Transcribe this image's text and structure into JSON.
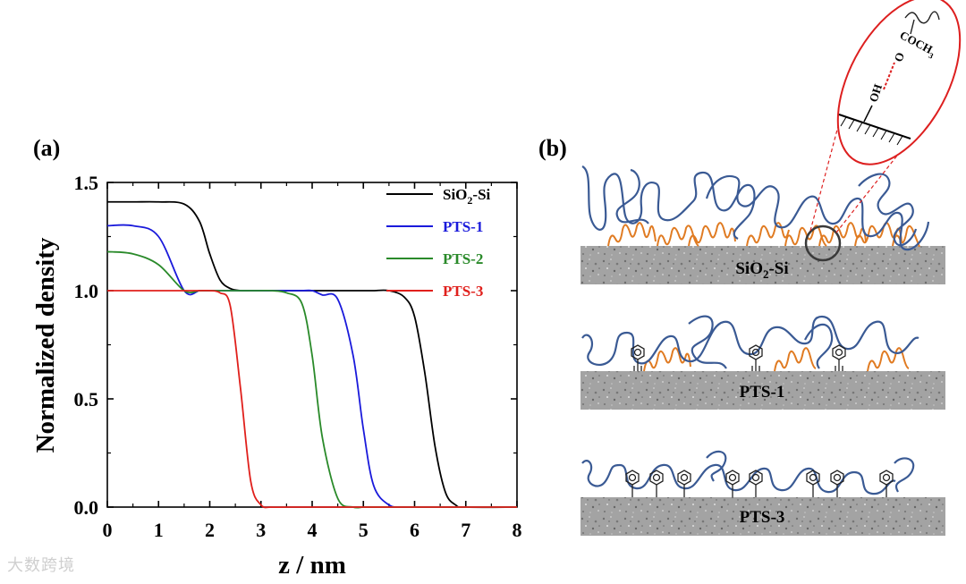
{
  "panel_a": {
    "label": "(a)"
  },
  "panel_b": {
    "label": "(b)",
    "substrates": [
      {
        "label_main": "SiO",
        "label_sub": "2",
        "label_tail": "-Si"
      },
      {
        "label_main": "PTS-1",
        "label_sub": "",
        "label_tail": ""
      },
      {
        "label_main": "PTS-3",
        "label_sub": "",
        "label_tail": ""
      }
    ],
    "zoom": {
      "hydroxyl": "OH",
      "carbonyl": "O",
      "acetyl_main": "COCH",
      "acetyl_sub": "3"
    }
  },
  "watermark": {
    "text": "大数跨境"
  },
  "colors": {
    "sio2": "#000000",
    "pts1": "#1a1adb",
    "pts2": "#2a8a2a",
    "pts3": "#e0201c",
    "polymer": "#3a5a94",
    "sam": "#e07b22",
    "substrate": "#9a9a9a",
    "zoom": "#dd1f1f"
  },
  "chart_data": {
    "type": "line",
    "title": "",
    "xlabel": "z / nm",
    "ylabel": "Normalized density",
    "xlim": [
      0,
      8
    ],
    "ylim": [
      0,
      1.5
    ],
    "xticks": [
      0,
      1,
      2,
      3,
      4,
      5,
      6,
      7,
      8
    ],
    "yticks": [
      0.0,
      0.5,
      1.0,
      1.5
    ],
    "ytick_labels": [
      "0.0",
      "0.5",
      "1.0",
      "1.5"
    ],
    "legend_position": "top-right",
    "grid": false,
    "x": [
      0,
      0.5,
      1.0,
      1.5,
      1.8,
      2.0,
      2.2,
      2.4,
      2.6,
      2.8,
      3.0,
      3.2,
      3.5,
      3.8,
      4.0,
      4.2,
      4.5,
      4.8,
      5.0,
      5.2,
      5.5,
      5.8,
      6.0,
      6.2,
      6.4,
      6.6,
      6.8,
      7.0,
      8.0
    ],
    "series": [
      {
        "name_main": "SiO",
        "name_sub": "2",
        "name_tail": "-Si",
        "color": "#000000",
        "values": [
          1.41,
          1.41,
          1.41,
          1.4,
          1.32,
          1.17,
          1.05,
          1.01,
          1.0,
          1.0,
          1.0,
          1.0,
          1.0,
          1.0,
          1.0,
          1.0,
          1.0,
          1.0,
          1.0,
          1.0,
          1.0,
          0.97,
          0.88,
          0.62,
          0.28,
          0.07,
          0.01,
          0.0,
          0.0
        ]
      },
      {
        "name_main": "PTS-1",
        "name_sub": "",
        "name_tail": "",
        "color": "#1a1adb",
        "values": [
          1.3,
          1.3,
          1.25,
          1.0,
          1.0,
          1.0,
          1.0,
          1.0,
          1.0,
          1.0,
          1.0,
          1.0,
          1.0,
          1.0,
          1.0,
          0.98,
          0.96,
          0.7,
          0.36,
          0.1,
          0.01,
          0.0,
          0.0,
          0.0,
          0.0,
          0.0,
          0.0,
          0.0,
          0.0
        ]
      },
      {
        "name_main": "PTS-2",
        "name_sub": "",
        "name_tail": "",
        "color": "#2a8a2a",
        "values": [
          1.18,
          1.17,
          1.12,
          1.0,
          1.0,
          1.0,
          1.0,
          1.0,
          1.0,
          1.0,
          1.0,
          1.0,
          0.99,
          0.94,
          0.7,
          0.32,
          0.04,
          0.0,
          0.0,
          0.0,
          0.0,
          0.0,
          0.0,
          0.0,
          0.0,
          0.0,
          0.0,
          0.0,
          0.0
        ]
      },
      {
        "name_main": "PTS-3",
        "name_sub": "",
        "name_tail": "",
        "color": "#e0201c",
        "values": [
          1.0,
          1.0,
          1.0,
          1.0,
          1.0,
          1.0,
          0.99,
          0.93,
          0.55,
          0.12,
          0.01,
          0.0,
          0.0,
          0.0,
          0.0,
          0.0,
          0.0,
          0.0,
          0.0,
          0.0,
          0.0,
          0.0,
          0.0,
          0.0,
          0.0,
          0.0,
          0.0,
          0.0,
          0.0
        ]
      }
    ]
  }
}
